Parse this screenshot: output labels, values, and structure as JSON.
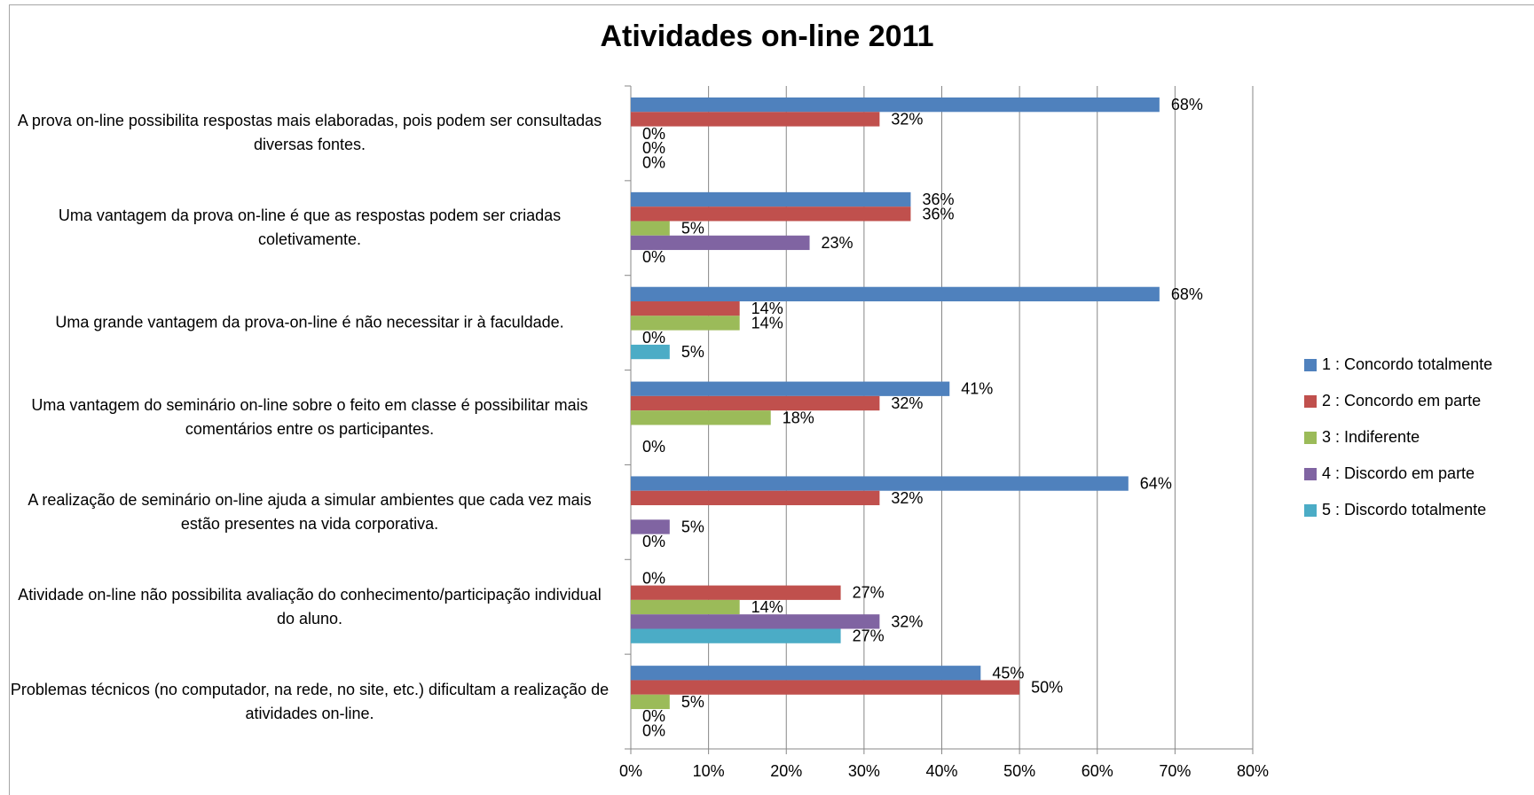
{
  "chart_data": {
    "type": "bar",
    "orientation": "horizontal",
    "title": "Atividades on-line 2011",
    "xlim": [
      0,
      80
    ],
    "x_ticks": [
      "0%",
      "10%",
      "20%",
      "30%",
      "40%",
      "50%",
      "60%",
      "70%",
      "80%"
    ],
    "grid": true,
    "legend_position": "right",
    "categories": [
      "A prova on-line possibilita respostas mais elaboradas, pois podem ser consultadas diversas fontes.",
      "Uma vantagem da prova on-line é que as respostas podem ser criadas coletivamente.",
      "Uma grande vantagem da prova-on-line é não necessitar ir à faculdade.",
      "Uma vantagem do seminário on-line sobre o feito em classe é possibilitar mais comentários entre os participantes.",
      "A realização de seminário on-line ajuda a simular ambientes que cada vez mais estão presentes na vida corporativa.",
      "Atividade on-line não possibilita avaliação do conhecimento/participação individual do aluno.",
      "Problemas técnicos (no computador, na rede, no site, etc.) dificultam a realização de atividades on-line."
    ],
    "series": [
      {
        "name": "1 : Concordo totalmente",
        "color": "#4f81bd",
        "values": [
          68,
          36,
          68,
          41,
          64,
          0,
          45
        ]
      },
      {
        "name": "2 : Concordo em parte",
        "color": "#c0504d",
        "values": [
          32,
          36,
          14,
          32,
          32,
          27,
          50
        ]
      },
      {
        "name": "3 : Indiferente",
        "color": "#9bbb59",
        "values": [
          0,
          5,
          14,
          18,
          null,
          14,
          5
        ]
      },
      {
        "name": "4 : Discordo em parte",
        "color": "#8064a2",
        "values": [
          0,
          23,
          0,
          null,
          5,
          32,
          0
        ]
      },
      {
        "name": "5 : Discordo totalmente",
        "color": "#4bacc6",
        "values": [
          0,
          0,
          5,
          0,
          0,
          27,
          0
        ]
      }
    ]
  }
}
